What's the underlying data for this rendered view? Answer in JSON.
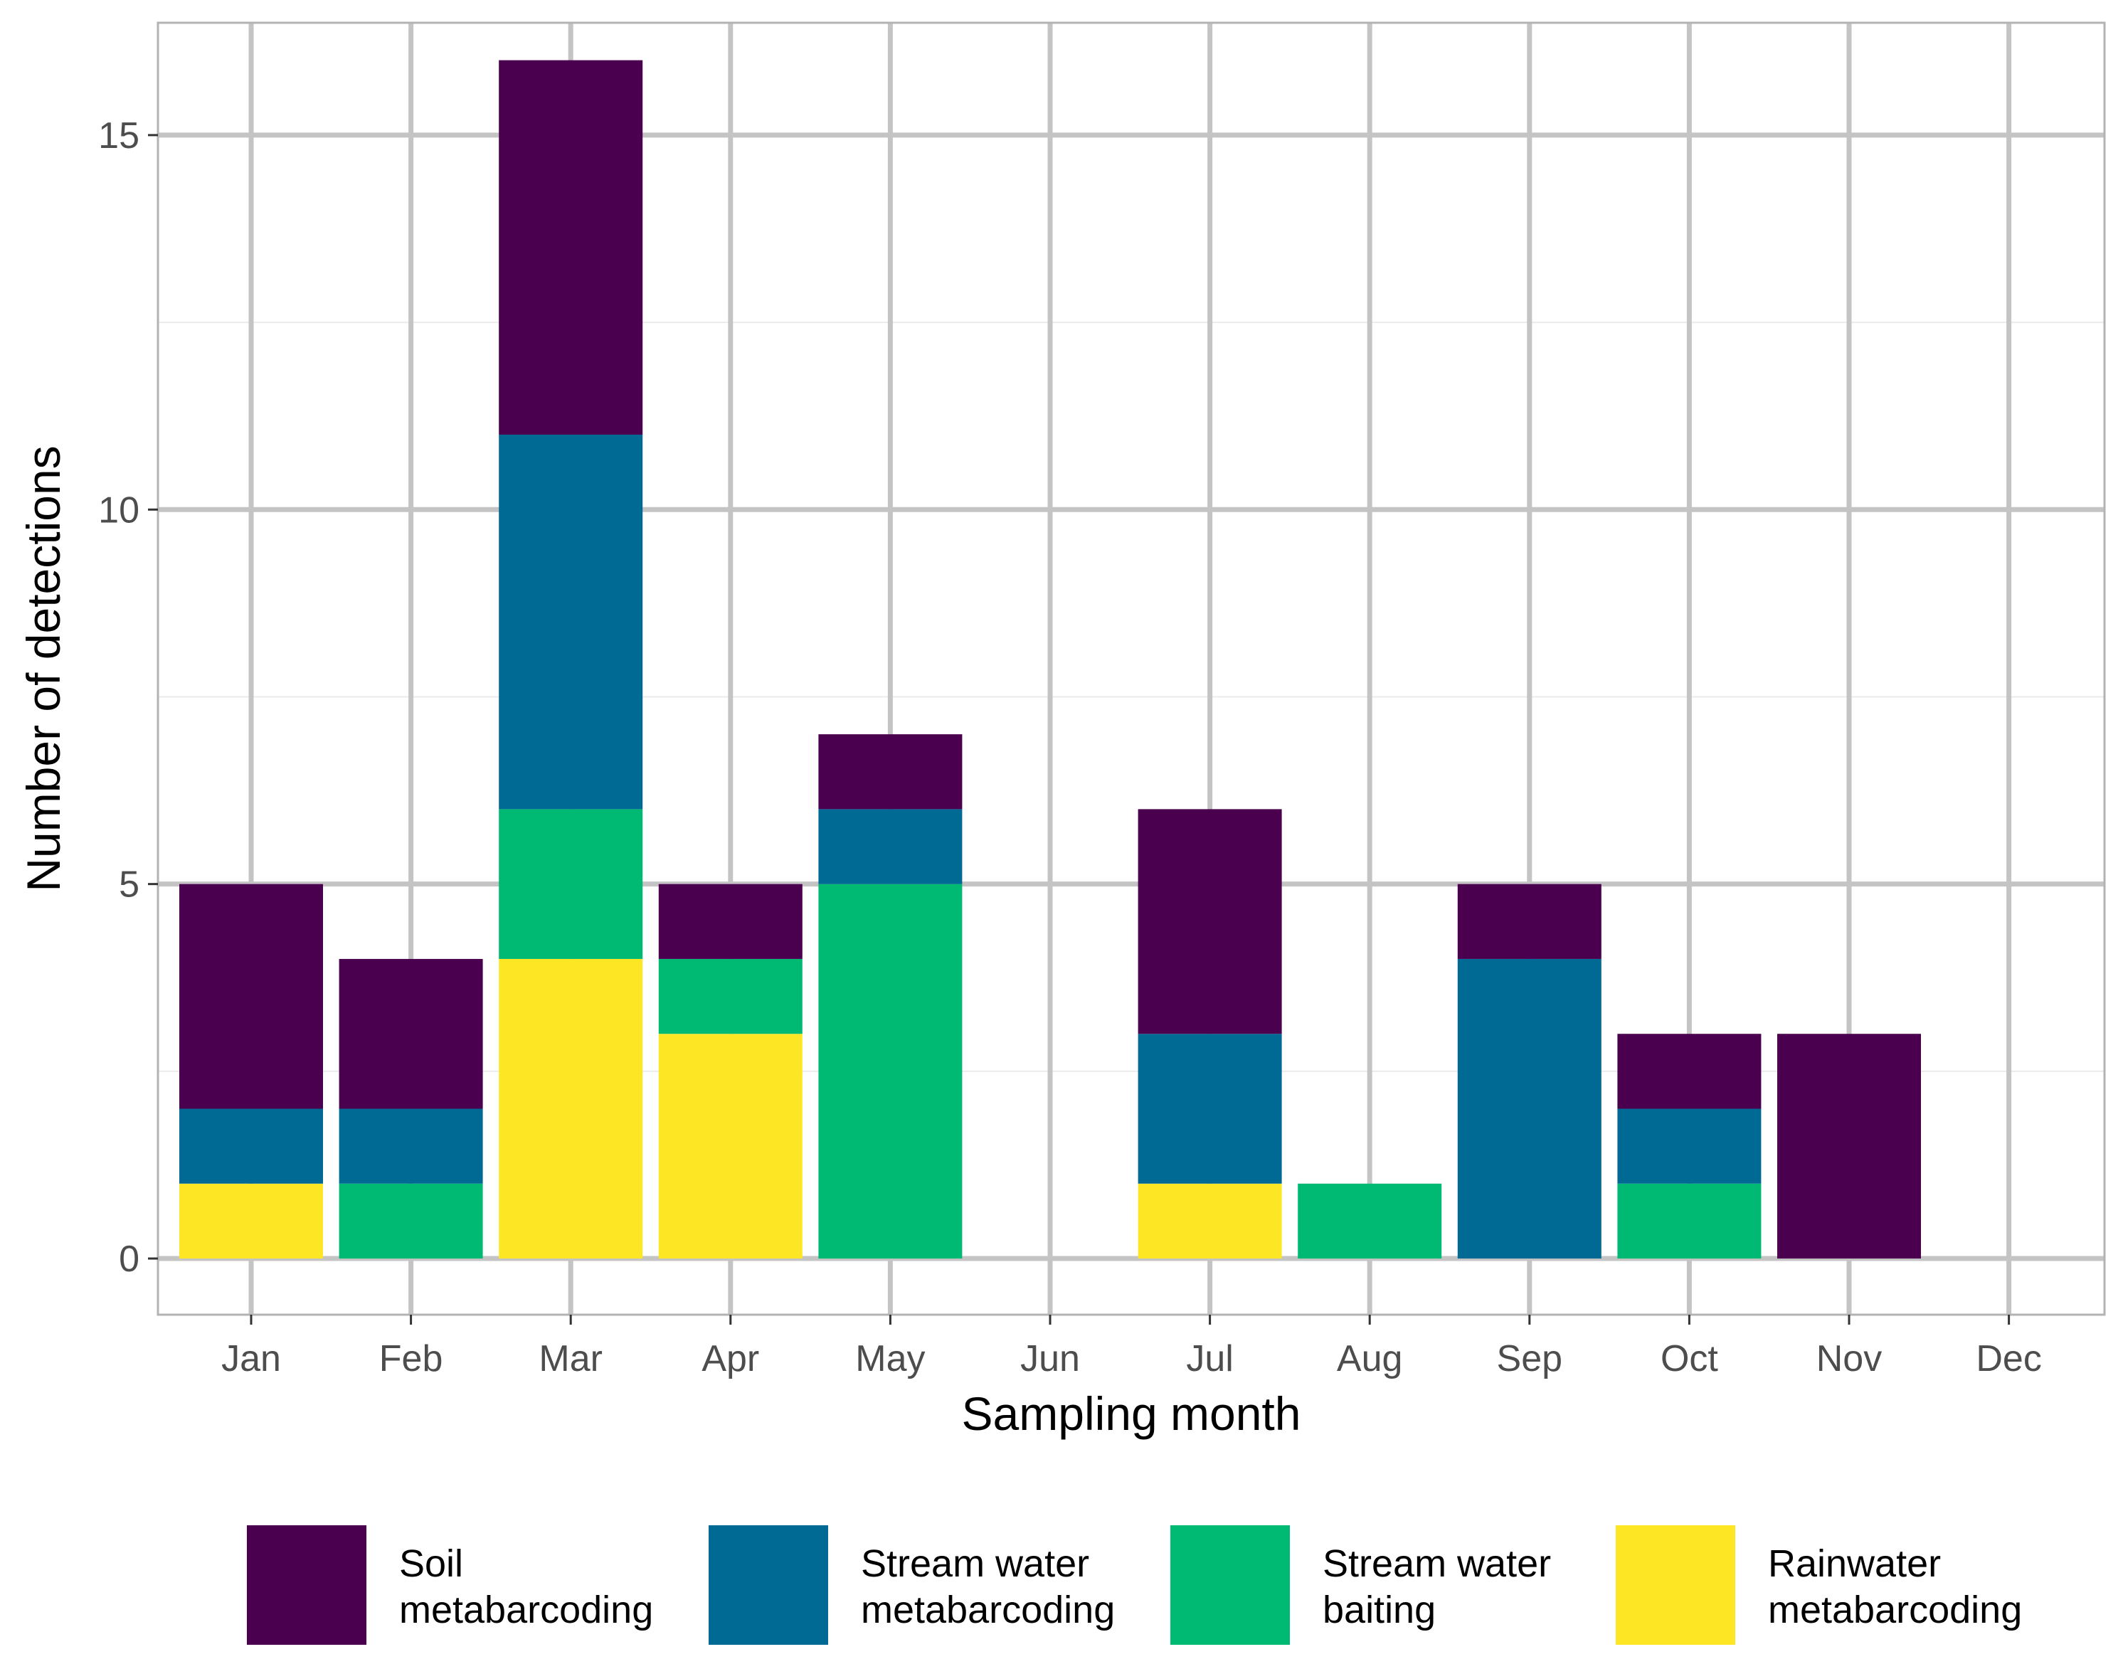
{
  "chart_data": {
    "type": "bar",
    "stacked": true,
    "title": "",
    "xlabel": "Sampling month",
    "ylabel": "Number of detections",
    "categories": [
      "Jan",
      "Feb",
      "Mar",
      "Apr",
      "May",
      "Jun",
      "Jul",
      "Aug",
      "Sep",
      "Oct",
      "Nov",
      "Dec"
    ],
    "ylim": [
      -0.75,
      16.5
    ],
    "yticks": [
      0,
      5,
      10,
      15
    ],
    "grid": true,
    "legend_position": "bottom",
    "series": [
      {
        "name": "Rainwater\nmetabarcoding",
        "color": "#FDE725",
        "values": [
          1,
          0,
          4,
          3,
          0,
          0,
          1,
          0,
          0,
          0,
          0,
          0
        ]
      },
      {
        "name": "Stream water\nbaiting",
        "color": "#00BA74",
        "values": [
          0,
          1,
          2,
          1,
          5,
          0,
          0,
          1,
          0,
          1,
          0,
          0
        ]
      },
      {
        "name": "Stream water\nmetabarcoding",
        "color": "#016A94",
        "values": [
          1,
          1,
          5,
          0,
          1,
          0,
          2,
          0,
          4,
          1,
          0,
          0
        ]
      },
      {
        "name": "Soil\nmetabarcoding",
        "color": "#4B004F",
        "values": [
          3,
          2,
          5,
          1,
          1,
          0,
          3,
          0,
          1,
          1,
          3,
          0
        ]
      }
    ],
    "legend_order": [
      "Soil\nmetabarcoding",
      "Stream water\nmetabarcoding",
      "Stream water\nbaiting",
      "Rainwater\nmetabarcoding"
    ]
  }
}
